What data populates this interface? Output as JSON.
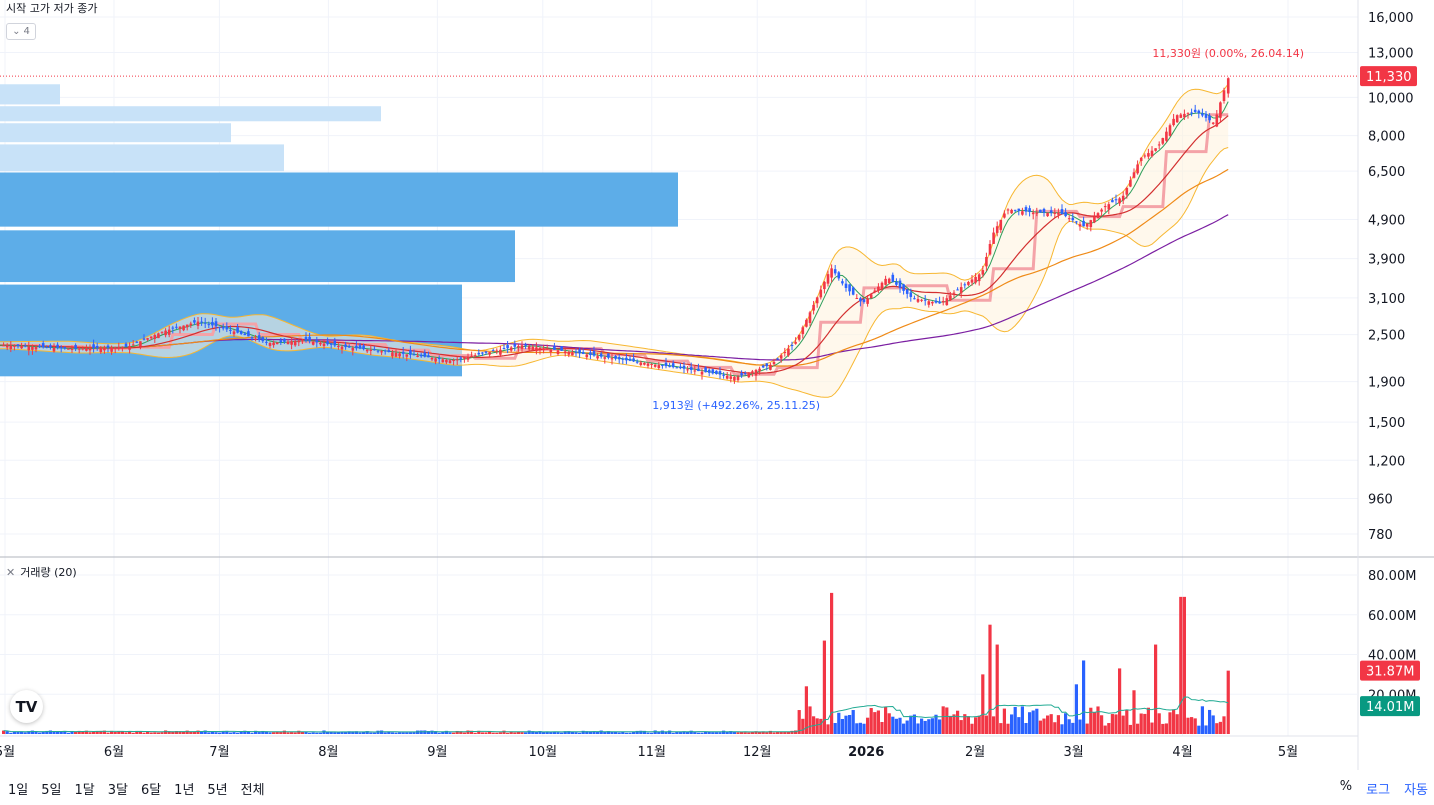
{
  "legend": {
    "ohlc_labels": "시작 고가 저가 종가",
    "collapse_count": "4",
    "volume_label": "거래량 (20)"
  },
  "annotations": {
    "high_label": "11,330원 (0.00%, 26.04.14)",
    "low_label": "1,913원 (+492.26%, 25.11.25)"
  },
  "price_scale": {
    "badge": "11,330",
    "badge_color": "#f23645"
  },
  "volume_scale": {
    "badge_red": "31.87M",
    "badge_green": "14.01M"
  },
  "time_ranges": [
    "1일",
    "5일",
    "1달",
    "3달",
    "6달",
    "1년",
    "5년",
    "전체"
  ],
  "options": {
    "percent": "%",
    "log": "로그",
    "auto": "자동"
  },
  "colors": {
    "up": "#f23645",
    "down": "#2962ff",
    "volume_profile_light": "#c8e2f8",
    "volume_profile_dark": "#5dade8",
    "ma_volume": "#22ab94"
  },
  "chart_data": [
    {
      "type": "candlestick",
      "title": "",
      "y_scale": "log",
      "ylim": [
        700,
        17500
      ],
      "y_ticks": [
        "16,000",
        "13,000",
        "10,000",
        "8,000",
        "6,500",
        "4,900",
        "3,900",
        "3,100",
        "2,500",
        "1,900",
        "1,500",
        "1,200",
        "960",
        "780"
      ],
      "x_ticks": [
        "5월",
        "6월",
        "7월",
        "8월",
        "9월",
        "10월",
        "11월",
        "12월",
        "2026",
        "2월",
        "3월",
        "4월",
        "5월"
      ],
      "close_path": [
        {
          "x": "2025-05-01",
          "y": 2350
        },
        {
          "x": "2025-05-20",
          "y": 2300
        },
        {
          "x": "2025-06-05",
          "y": 2330
        },
        {
          "x": "2025-06-15",
          "y": 2550
        },
        {
          "x": "2025-06-25",
          "y": 2700
        },
        {
          "x": "2025-07-05",
          "y": 2550
        },
        {
          "x": "2025-07-15",
          "y": 2380
        },
        {
          "x": "2025-07-25",
          "y": 2420
        },
        {
          "x": "2025-08-05",
          "y": 2330
        },
        {
          "x": "2025-08-20",
          "y": 2250
        },
        {
          "x": "2025-09-05",
          "y": 2150
        },
        {
          "x": "2025-09-15",
          "y": 2250
        },
        {
          "x": "2025-09-25",
          "y": 2350
        },
        {
          "x": "2025-10-10",
          "y": 2250
        },
        {
          "x": "2025-10-25",
          "y": 2150
        },
        {
          "x": "2025-11-10",
          "y": 2050
        },
        {
          "x": "2025-11-25",
          "y": 1950
        },
        {
          "x": "2025-12-05",
          "y": 2100
        },
        {
          "x": "2025-12-12",
          "y": 2400
        },
        {
          "x": "2025-12-18",
          "y": 3100
        },
        {
          "x": "2025-12-22",
          "y": 3700
        },
        {
          "x": "2025-12-26",
          "y": 3300
        },
        {
          "x": "2025-12-31",
          "y": 3000
        },
        {
          "x": "2026-01-07",
          "y": 3500
        },
        {
          "x": "2026-01-14",
          "y": 3100
        },
        {
          "x": "2026-01-22",
          "y": 3000
        },
        {
          "x": "2026-01-28",
          "y": 3300
        },
        {
          "x": "2026-02-03",
          "y": 3600
        },
        {
          "x": "2026-02-06",
          "y": 4500
        },
        {
          "x": "2026-02-10",
          "y": 5200
        },
        {
          "x": "2026-02-18",
          "y": 5100
        },
        {
          "x": "2026-02-25",
          "y": 5100
        },
        {
          "x": "2026-03-04",
          "y": 4700
        },
        {
          "x": "2026-03-10",
          "y": 5300
        },
        {
          "x": "2026-03-15",
          "y": 5600
        },
        {
          "x": "2026-03-20",
          "y": 7000
        },
        {
          "x": "2026-03-25",
          "y": 7500
        },
        {
          "x": "2026-03-30",
          "y": 9000
        },
        {
          "x": "2026-04-05",
          "y": 9200
        },
        {
          "x": "2026-04-10",
          "y": 8600
        },
        {
          "x": "2026-04-14",
          "y": 11330
        }
      ],
      "high": 11330,
      "low": 1913
    },
    {
      "type": "bar",
      "title": "거래량 (20)",
      "ylim": [
        0,
        85
      ],
      "y_unit": "M",
      "y_ticks": [
        "80.00M",
        "60.00M",
        "40.00M",
        "20.00M"
      ],
      "spikes": [
        {
          "x": "2025-12-15",
          "value": 24
        },
        {
          "x": "2025-12-20",
          "value": 47
        },
        {
          "x": "2025-12-22",
          "value": 71
        },
        {
          "x": "2026-02-03",
          "value": 30
        },
        {
          "x": "2026-02-05",
          "value": 55
        },
        {
          "x": "2026-02-07",
          "value": 45
        },
        {
          "x": "2026-03-02",
          "value": 25
        },
        {
          "x": "2026-03-04",
          "value": 37
        },
        {
          "x": "2026-03-14",
          "value": 33
        },
        {
          "x": "2026-03-18",
          "value": 22
        },
        {
          "x": "2026-03-24",
          "value": 45
        },
        {
          "x": "2026-04-01",
          "value": 69
        },
        {
          "x": "2026-04-14",
          "value": 31.87
        }
      ],
      "last_volume": 31.87,
      "last_ma": 14.01
    }
  ]
}
